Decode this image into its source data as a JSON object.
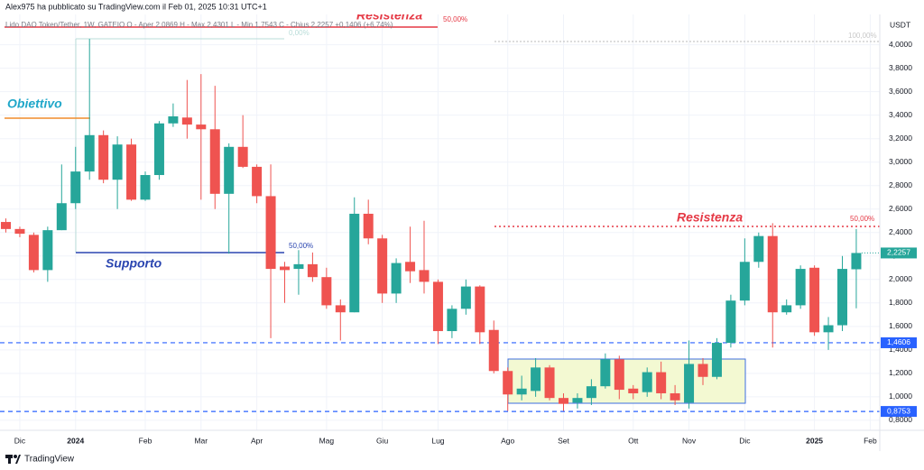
{
  "chart_data": {
    "type": "candlestick",
    "attribution": "Alex975 ha pubblicato su TradingView.com il Feb 01, 2025 10:31 UTC+1",
    "legend_text": "Lido DAO Token/Tether, 1W, GATEIO  O - Aper 2,0869  H - Max 2,4301  L - Min 1,7543  C - Chius 2,2257  +0,1406 (+6,74%)",
    "currency": "USDT",
    "brand": "TradingView",
    "categories": [
      null,
      "Dic",
      null,
      null,
      null,
      "2024",
      null,
      null,
      null,
      null,
      "Feb",
      null,
      null,
      null,
      "Mar",
      null,
      null,
      null,
      "Apr",
      null,
      null,
      null,
      null,
      "Mag",
      null,
      null,
      null,
      "Giu",
      null,
      null,
      null,
      "Lug",
      null,
      null,
      null,
      null,
      "Ago",
      null,
      null,
      null,
      "Set",
      null,
      null,
      null,
      null,
      "Ott",
      null,
      null,
      null,
      "Nov",
      null,
      null,
      null,
      "Dic",
      null,
      null,
      null,
      null,
      "2025",
      null,
      null,
      null,
      "Feb"
    ],
    "open": [
      2.49,
      2.43,
      2.38,
      2.08,
      2.42,
      2.65,
      2.92,
      3.23,
      2.85,
      3.15,
      2.68,
      2.89,
      3.33,
      3.38,
      3.32,
      3.28,
      2.73,
      3.13,
      2.96,
      2.71,
      2.11,
      2.09,
      2.13,
      2.02,
      1.78,
      1.72,
      2.56,
      2.35,
      1.88,
      2.15,
      2.08,
      1.98,
      1.56,
      1.75,
      1.94,
      1.57,
      1.22,
      1.02,
      1.05,
      1.25,
      0.99,
      0.95,
      0.99,
      1.09,
      1.32,
      1.07,
      1.04,
      1.21,
      1.03,
      0.95,
      1.28,
      1.17,
      1.46,
      1.82,
      2.15,
      2.37,
      1.72,
      1.78,
      2.1,
      1.55,
      1.61,
      2.0869,
      null
    ],
    "high": [
      2.52,
      2.45,
      2.4,
      2.45,
      2.98,
      3.13,
      4.05,
      3.27,
      3.22,
      3.2,
      2.92,
      3.35,
      3.5,
      3.7,
      3.75,
      3.65,
      3.16,
      3.4,
      2.98,
      2.98,
      2.15,
      2.25,
      2.23,
      2.1,
      1.83,
      2.7,
      2.68,
      2.38,
      2.18,
      2.45,
      2.5,
      2.0,
      1.78,
      2.0,
      1.95,
      1.65,
      1.25,
      1.18,
      1.33,
      1.27,
      1.03,
      1.03,
      1.15,
      1.37,
      1.35,
      1.1,
      1.25,
      1.3,
      1.1,
      1.48,
      1.33,
      1.5,
      1.87,
      2.35,
      2.4,
      2.48,
      1.83,
      2.12,
      2.12,
      1.68,
      2.2,
      2.4301,
      null
    ],
    "low": [
      2.4,
      2.36,
      2.06,
      1.98,
      2.42,
      2.6,
      2.85,
      2.82,
      2.6,
      2.67,
      2.67,
      2.85,
      3.3,
      3.2,
      2.68,
      2.6,
      2.22,
      2.95,
      2.65,
      1.5,
      1.8,
      1.87,
      1.98,
      1.75,
      1.48,
      1.72,
      2.3,
      1.8,
      1.8,
      1.97,
      1.88,
      1.45,
      1.5,
      1.7,
      1.45,
      1.2,
      0.88,
      0.97,
      1.0,
      0.97,
      0.88,
      0.9,
      0.93,
      1.07,
      0.98,
      0.98,
      1.0,
      0.98,
      0.93,
      0.9,
      1.1,
      1.15,
      1.42,
      1.78,
      2.1,
      1.42,
      1.7,
      1.75,
      1.52,
      1.4,
      1.56,
      1.7543,
      null
    ],
    "close": [
      2.43,
      2.39,
      2.08,
      2.42,
      2.65,
      2.92,
      3.23,
      2.85,
      3.15,
      2.68,
      2.89,
      3.33,
      3.39,
      3.32,
      3.28,
      2.73,
      3.13,
      2.96,
      2.71,
      2.09,
      2.08,
      2.13,
      2.02,
      1.78,
      1.72,
      2.56,
      2.35,
      1.88,
      2.14,
      2.07,
      1.98,
      1.56,
      1.75,
      1.94,
      1.55,
      1.22,
      1.02,
      1.07,
      1.25,
      0.99,
      0.94,
      0.99,
      1.09,
      1.32,
      1.06,
      1.03,
      1.21,
      1.03,
      0.97,
      1.28,
      1.17,
      1.46,
      1.82,
      2.15,
      2.37,
      1.72,
      1.78,
      2.09,
      1.55,
      1.61,
      2.09,
      2.2257,
      null
    ],
    "up_color": "#26a69a",
    "down_color": "#ef5350",
    "last_price_label": "2,2257",
    "ylim": [
      0.73,
      4.32
    ],
    "yticks": [
      {
        "value": 0.8,
        "label": "0,8000"
      },
      {
        "value": 1.0,
        "label": "1,0000"
      },
      {
        "value": 1.2,
        "label": "1,2000"
      },
      {
        "value": 1.4,
        "label": "1,4000"
      },
      {
        "value": 1.6,
        "label": "1,6000"
      },
      {
        "value": 1.8,
        "label": "1,8000"
      },
      {
        "value": 2.0,
        "label": "2,0000"
      },
      {
        "value": 2.2,
        "label": "2,2000"
      },
      {
        "value": 2.4,
        "label": "2,4000"
      },
      {
        "value": 2.6,
        "label": "2,6000"
      },
      {
        "value": 2.8,
        "label": "2,8000"
      },
      {
        "value": 3.0,
        "label": "3,0000"
      },
      {
        "value": 3.2,
        "label": "3,2000"
      },
      {
        "value": 3.4,
        "label": "3,4000"
      },
      {
        "value": 3.6,
        "label": "3,6000"
      },
      {
        "value": 3.8,
        "label": "3,8000"
      },
      {
        "value": 4.0,
        "label": "4,0000"
      }
    ],
    "grid": true,
    "price_lines": [
      {
        "value": 1.4606,
        "label": "1,4606",
        "color": "#2962ff"
      },
      {
        "value": 0.8753,
        "label": "0,8753",
        "color": "#2962ff"
      }
    ],
    "annotations": [
      {
        "text": "Resistenza",
        "color": "#e53945"
      },
      {
        "text": "50,00%",
        "color": "#e53945"
      },
      {
        "text": "0,00%",
        "color": "#b8dcd8"
      },
      {
        "text": "Obiettivo",
        "color": "#20a7c9"
      },
      {
        "text": "Supporto",
        "color": "#2a45b0"
      },
      {
        "text": "50,00%",
        "color": "#2a45b0"
      },
      {
        "text": "Resistenza",
        "color": "#e53945"
      },
      {
        "text": "50,00%",
        "color": "#e53945"
      },
      {
        "text": "100,00%",
        "color": "#c8c8c8"
      }
    ]
  }
}
